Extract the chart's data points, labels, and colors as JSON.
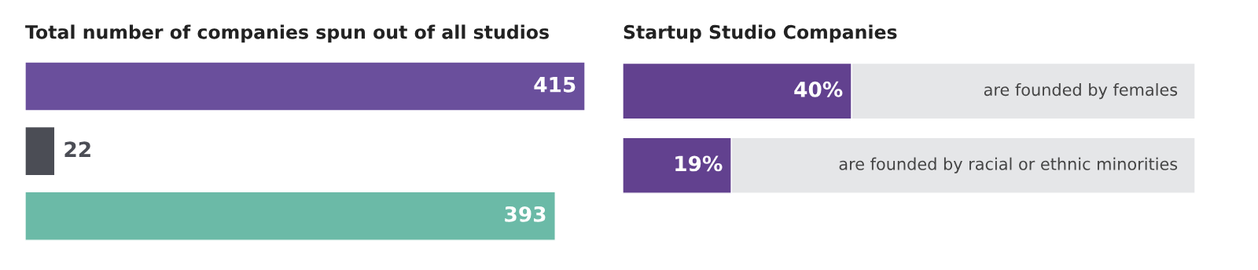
{
  "chart_data": [
    {
      "type": "bar",
      "orientation": "horizontal",
      "title": "Total number of companies spun out of all studios",
      "categories": [
        null,
        null,
        null
      ],
      "values": [
        415,
        22,
        393
      ],
      "colors": [
        "#6a4f9c",
        "#4b4d55",
        "#6bbaa7"
      ],
      "data_labels": true
    },
    {
      "type": "bar",
      "orientation": "horizontal",
      "stacked": true,
      "title": "Startup Studio Companies",
      "categories": [
        "are founded by females",
        "are founded by racial or ethnic minorities"
      ],
      "series": [
        {
          "color": "#62418f",
          "values": [
            40,
            19
          ],
          "value_labels": [
            "40%",
            "19%"
          ]
        },
        {
          "color": "#e5e6e8",
          "values": [
            60,
            81
          ]
        }
      ]
    }
  ]
}
